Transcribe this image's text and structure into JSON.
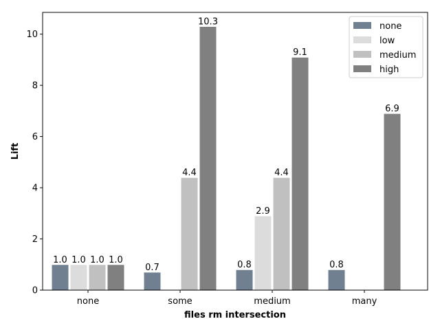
{
  "chart_data": {
    "type": "bar",
    "categories": [
      "none",
      "some",
      "medium",
      "many"
    ],
    "series": [
      {
        "name": "none",
        "color": "#708090",
        "values": [
          1.0,
          0.7,
          0.8,
          0.8
        ]
      },
      {
        "name": "low",
        "color": "#dcdcdc",
        "values": [
          1.0,
          null,
          2.9,
          null
        ]
      },
      {
        "name": "medium",
        "color": "#c0c0c0",
        "values": [
          1.0,
          4.4,
          4.4,
          null
        ]
      },
      {
        "name": "high",
        "color": "#808080",
        "values": [
          1.0,
          10.3,
          9.1,
          6.9
        ]
      }
    ],
    "data_labels": [
      [
        "1.0",
        "0.7",
        "0.8",
        "0.8"
      ],
      [
        "1.0",
        "",
        "2.9",
        ""
      ],
      [
        "1.0",
        "4.4",
        "4.4",
        ""
      ],
      [
        "1.0",
        "10.3",
        "9.1",
        "6.9"
      ]
    ],
    "xlabel": "files rm intersection",
    "ylabel": "Lift",
    "ylim": [
      0,
      10.85
    ],
    "yticks": [
      0,
      2,
      4,
      6,
      8,
      10
    ],
    "grid": false,
    "legend_position": "top-right"
  }
}
